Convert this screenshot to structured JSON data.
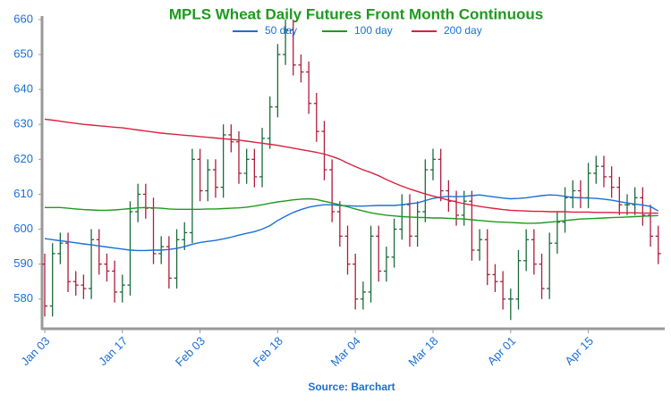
{
  "chart_data": {
    "type": "ohlc",
    "title": "MPLS Wheat Daily Futures Front Month Continuous",
    "source": "Source: Barchart",
    "categories": [
      "Jan 03",
      null,
      null,
      null,
      null,
      null,
      null,
      null,
      null,
      null,
      "Jan 17",
      null,
      null,
      null,
      null,
      null,
      null,
      null,
      null,
      null,
      "Feb 03",
      null,
      null,
      null,
      null,
      null,
      null,
      null,
      null,
      null,
      "Feb 18",
      null,
      null,
      null,
      null,
      null,
      null,
      null,
      null,
      null,
      "Mar 04",
      null,
      null,
      null,
      null,
      null,
      null,
      null,
      null,
      null,
      "Mar 18",
      null,
      null,
      null,
      null,
      null,
      null,
      null,
      null,
      null,
      "Apr 01",
      null,
      null,
      null,
      null,
      null,
      null,
      null,
      null,
      null,
      "Apr 15",
      null,
      null,
      null,
      null,
      null,
      null,
      null,
      null,
      null
    ],
    "open": [
      590,
      578,
      593,
      596,
      585,
      584,
      583,
      597,
      590,
      588,
      582,
      584,
      605,
      610,
      606,
      593,
      595,
      586,
      597,
      599,
      620,
      611,
      617,
      612,
      627,
      625,
      616,
      620,
      615,
      626,
      635,
      650,
      657,
      647,
      645,
      636,
      628,
      617,
      605,
      598,
      590,
      580,
      582,
      598,
      588,
      592,
      600,
      607,
      598,
      605,
      617,
      620,
      611,
      608,
      604,
      608,
      594,
      597,
      587,
      585,
      580,
      580,
      591,
      597,
      590,
      583,
      596,
      602,
      609,
      611,
      609,
      616,
      618,
      615,
      612,
      607,
      607,
      609,
      604,
      598
    ],
    "high": [
      593,
      596,
      599,
      599,
      588,
      587,
      600,
      600,
      593,
      591,
      587,
      608,
      613,
      613,
      609,
      598,
      598,
      600,
      602,
      623,
      623,
      620,
      620,
      630,
      630,
      628,
      623,
      623,
      629,
      638,
      653,
      660,
      660,
      650,
      648,
      639,
      631,
      620,
      608,
      601,
      593,
      585,
      601,
      601,
      595,
      603,
      610,
      610,
      608,
      620,
      623,
      623,
      614,
      611,
      611,
      611,
      600,
      600,
      590,
      588,
      583,
      594,
      600,
      600,
      593,
      599,
      605,
      612,
      614,
      614,
      619,
      621,
      621,
      618,
      615,
      610,
      612,
      612,
      607,
      601
    ],
    "low": [
      575,
      575,
      590,
      582,
      581,
      580,
      580,
      587,
      585,
      579,
      579,
      581,
      602,
      603,
      590,
      590,
      583,
      583,
      594,
      596,
      608,
      608,
      609,
      609,
      622,
      613,
      613,
      612,
      612,
      623,
      632,
      647,
      644,
      642,
      633,
      625,
      614,
      602,
      595,
      587,
      577,
      577,
      579,
      585,
      585,
      589,
      597,
      595,
      595,
      602,
      614,
      608,
      605,
      601,
      601,
      591,
      591,
      584,
      582,
      577,
      574,
      577,
      588,
      587,
      580,
      580,
      593,
      599,
      606,
      606,
      606,
      613,
      612,
      609,
      604,
      604,
      604,
      601,
      595,
      590
    ],
    "close": [
      578,
      593,
      596,
      585,
      584,
      583,
      597,
      590,
      588,
      582,
      584,
      605,
      610,
      606,
      593,
      595,
      586,
      597,
      599,
      620,
      611,
      617,
      612,
      627,
      625,
      616,
      620,
      615,
      626,
      635,
      650,
      657,
      647,
      645,
      636,
      628,
      617,
      605,
      598,
      590,
      580,
      582,
      598,
      588,
      592,
      600,
      607,
      598,
      605,
      617,
      620,
      611,
      608,
      604,
      608,
      594,
      597,
      587,
      585,
      580,
      580,
      591,
      597,
      590,
      583,
      596,
      602,
      609,
      611,
      609,
      616,
      618,
      615,
      612,
      607,
      607,
      609,
      604,
      598,
      593
    ],
    "up_color": "#1a6b3a",
    "down_color": "#b01c3c",
    "series": [
      {
        "name": "50 day",
        "color": "#1a6fd6",
        "values": [
          597.3,
          597.0,
          596.7,
          596.4,
          596.1,
          595.8,
          595.5,
          595.2,
          594.9,
          594.6,
          594.3,
          594.0,
          593.9,
          593.9,
          594.0,
          594.0,
          594.2,
          594.5,
          595.0,
          595.7,
          596.2,
          596.5,
          596.8,
          597.2,
          597.7,
          598.3,
          598.8,
          599.3,
          600.0,
          601.0,
          602.5,
          603.7,
          604.8,
          605.6,
          606.3,
          606.7,
          607.0,
          607.0,
          606.8,
          606.7,
          606.6,
          606.6,
          606.7,
          606.8,
          606.8,
          606.8,
          607.0,
          607.3,
          607.5,
          608.2,
          608.8,
          609.2,
          609.4,
          609.3,
          609.4,
          609.6,
          609.8,
          609.5,
          609.2,
          608.9,
          608.7,
          608.8,
          609.0,
          609.3,
          609.6,
          609.8,
          609.7,
          609.4,
          609.1,
          609.0,
          608.9,
          608.8,
          608.6,
          608.3,
          607.9,
          607.5,
          607.2,
          606.9,
          606.5,
          605.2
        ]
      },
      {
        "name": "100 day",
        "color": "#1e9a1e",
        "values": [
          606.2,
          606.2,
          606.2,
          606.0,
          605.8,
          605.6,
          605.5,
          605.4,
          605.4,
          605.5,
          605.7,
          605.9,
          606.1,
          606.2,
          606.1,
          606.0,
          605.8,
          605.7,
          605.7,
          605.7,
          605.7,
          605.8,
          605.8,
          605.9,
          606.0,
          606.1,
          606.3,
          606.6,
          607.0,
          607.4,
          607.8,
          608.1,
          608.4,
          608.6,
          608.7,
          608.5,
          608.0,
          607.5,
          607.0,
          606.4,
          605.8,
          605.2,
          604.7,
          604.3,
          604.0,
          603.8,
          603.6,
          603.5,
          603.4,
          603.3,
          603.2,
          603.2,
          603.1,
          603.0,
          602.9,
          602.7,
          602.5,
          602.3,
          602.1,
          602.0,
          601.9,
          601.8,
          601.7,
          601.7,
          601.8,
          602.0,
          602.2,
          602.5,
          602.7,
          602.9,
          603.0,
          603.1,
          603.2,
          603.3,
          603.4,
          603.5,
          603.6,
          603.7,
          603.8,
          603.9
        ]
      },
      {
        "name": "200 day",
        "color": "#d9213f",
        "values": [
          631.5,
          631.2,
          630.9,
          630.6,
          630.3,
          630.0,
          629.8,
          629.6,
          629.4,
          629.2,
          629.0,
          628.7,
          628.4,
          628.1,
          627.8,
          627.5,
          627.3,
          627.1,
          626.9,
          626.7,
          626.5,
          626.3,
          626.1,
          625.9,
          625.7,
          625.5,
          625.2,
          624.9,
          624.6,
          624.3,
          624.0,
          623.6,
          623.2,
          622.8,
          622.4,
          622.0,
          621.5,
          620.8,
          620.0,
          618.9,
          617.9,
          617.0,
          616.2,
          615.3,
          614.2,
          613.2,
          612.3,
          611.5,
          610.8,
          610.1,
          609.5,
          608.9,
          608.3,
          607.8,
          607.3,
          606.9,
          606.5,
          606.2,
          605.9,
          605.6,
          605.4,
          605.3,
          605.2,
          605.1,
          605.1,
          605.0,
          605.0,
          605.0,
          604.9,
          604.9,
          604.9,
          604.8,
          604.8,
          604.8,
          604.7,
          604.7,
          604.7,
          604.6,
          604.6,
          604.6
        ]
      }
    ],
    "ylim": [
      571.5,
      661
    ],
    "yticks": [
      580,
      590,
      600,
      610,
      620,
      630,
      640,
      650,
      660
    ],
    "title_color": "#1e9a1e",
    "label_color": "#1a6fd6"
  }
}
